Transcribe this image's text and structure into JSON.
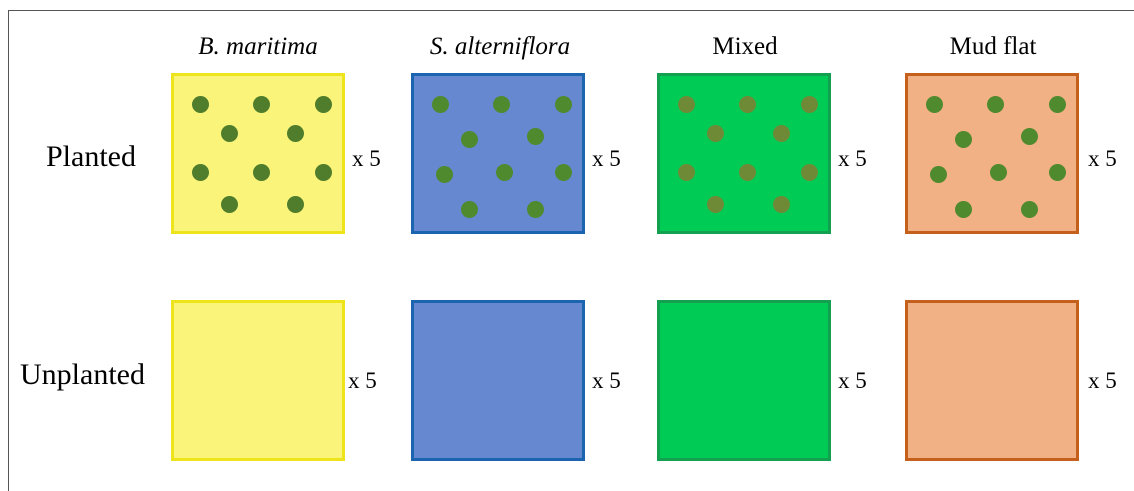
{
  "columns": [
    {
      "title": "B. maritima",
      "italic": true,
      "fill": "#fbf47a",
      "border": "#eee41c",
      "dot": "#4f7d2c"
    },
    {
      "title": "S. alterniflora",
      "italic": true,
      "fill": "#6688d0",
      "border": "#1a64b0",
      "dot": "#4f8a2f"
    },
    {
      "title": "Mixed",
      "italic": false,
      "fill": "#00cc55",
      "border": "#13a050",
      "dot": "#6e8a36"
    },
    {
      "title": "Mud flat",
      "italic": false,
      "fill": "#f2b185",
      "border": "#c4601c",
      "dot": "#4f8a2f"
    }
  ],
  "rows": [
    {
      "label": "Planted",
      "multiplier": "x 5",
      "has_plants": true
    },
    {
      "label": "Unplanted",
      "multiplier": "x 5",
      "has_plants": false
    }
  ]
}
